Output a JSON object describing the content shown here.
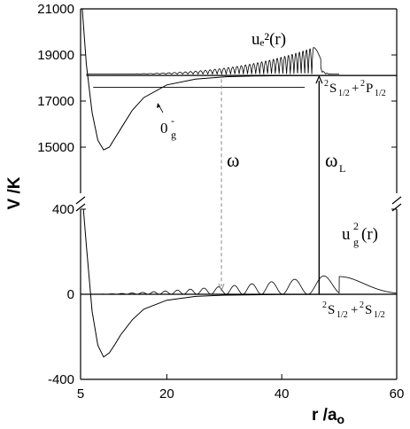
{
  "chart_data": [
    {
      "type": "line",
      "panel": "upper",
      "x_range": [
        5,
        60
      ],
      "y_range": [
        13000,
        21000
      ],
      "y_ticks": [
        "15000",
        "17000",
        "19000",
        "21000"
      ],
      "curves": [
        {
          "id": "potential-0g-minus",
          "x": [
            5.3,
            6,
            7,
            8,
            9,
            10,
            12,
            14,
            16,
            20,
            25,
            30,
            35,
            40,
            50,
            60
          ],
          "y": [
            21000,
            18600,
            16500,
            15300,
            14880,
            15000,
            15800,
            16600,
            17150,
            17700,
            17950,
            18050,
            18085,
            18100,
            18110,
            18110
          ]
        },
        {
          "id": "wavefunction-ue2",
          "description": "bound-state probability density above the 2S1/2+2P1/2 asymptote, largest lobe near r = 45.5"
        }
      ],
      "levels": {
        "asymptote": 18110,
        "bound_level": 17600,
        "bound_level_x": [
          7.2,
          44
        ]
      },
      "labels": {
        "wavefunction": "uₑ²(r)",
        "state": "0",
        "state_sub": "g",
        "state_sup": "-",
        "asymptote_a": "2",
        "asymptote_b": "S",
        "asymptote_c": "1/2",
        "asymptote_d": "+",
        "asymptote_e": "2",
        "asymptote_f": "P",
        "asymptote_g": "1/2"
      }
    },
    {
      "type": "line",
      "panel": "lower",
      "x_range": [
        5,
        60
      ],
      "y_range": [
        -400,
        400
      ],
      "y_ticks": [
        "-400",
        "0",
        "400"
      ],
      "curves": [
        {
          "id": "potential-ground",
          "x": [
            5.5,
            6,
            7,
            8,
            9,
            10,
            11,
            12,
            14,
            16,
            20,
            25,
            30,
            40,
            60
          ],
          "y": [
            400,
            230,
            -80,
            -240,
            -295,
            -275,
            -235,
            -190,
            -120,
            -70,
            -28,
            -10,
            -4,
            -1,
            0
          ]
        },
        {
          "id": "wavefunction-ug2",
          "description": "continuum-state probability density on the r axis, lobes growing to a maximum near r = 49"
        }
      ],
      "labels": {
        "wavefunction": "u",
        "wavefunction_sub": "g",
        "wavefunction_tail": "(r)",
        "wavefunction_sup": "2",
        "asymptote_a": "2",
        "asymptote_b": "S",
        "asymptote_c": "1/2",
        "asymptote_d": "+",
        "asymptote_e": "2",
        "asymptote_f": "S",
        "asymptote_g": "1/2"
      }
    }
  ],
  "transitions": {
    "omega": {
      "label": "ω",
      "x": 29.5,
      "style": "dashed"
    },
    "omega_L": {
      "label": "ω",
      "label_sub": "L",
      "x": 46.5,
      "style": "solid"
    }
  },
  "axes": {
    "x_ticks": [
      "5",
      "20",
      "40",
      "60"
    ],
    "x_label": "r /a",
    "x_label_sub": "o",
    "y_label": "V /K"
  }
}
